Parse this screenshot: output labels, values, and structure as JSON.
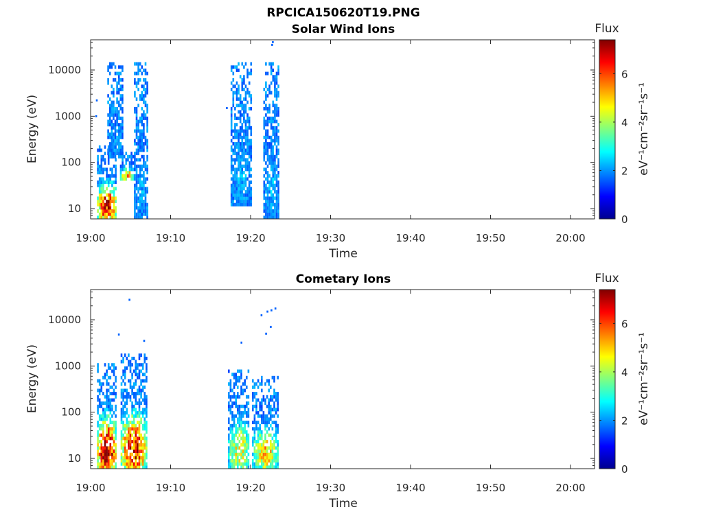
{
  "figure": {
    "title": "RPCICA150620T19.PNG"
  },
  "colorbar": {
    "title": "Flux",
    "label": "eV⁻¹cm⁻²sr⁻¹s⁻¹",
    "range": [
      0,
      7.4
    ],
    "ticks": [
      "0",
      "2",
      "4",
      "6"
    ],
    "colormap": "jet"
  },
  "chart_data": [
    {
      "type": "heatmap",
      "title": "Solar Wind Ions",
      "xlabel": "Time",
      "ylabel": "Energy (eV)",
      "x_ticks": [
        "19:00",
        "19:10",
        "19:20",
        "19:30",
        "19:40",
        "19:50",
        "20:00"
      ],
      "y_ticks": [
        "10",
        "100",
        "1000",
        "10000"
      ],
      "x_range": [
        "19:00",
        "20:03"
      ],
      "y_range": [
        6,
        45000
      ],
      "y_scale": "log",
      "color_range": [
        0,
        7.4
      ],
      "blobs": [
        {
          "t0": "19:00:48",
          "t1": "19:03:05",
          "e0": 6,
          "e1": 220,
          "peak": 6.5
        },
        {
          "t0": "19:02:05",
          "t1": "19:04:05",
          "e0": 120,
          "e1": 15000,
          "peak": 2.0
        },
        {
          "t0": "19:03:40",
          "t1": "19:05:15",
          "e0": 40,
          "e1": 160,
          "peak": 5.2
        },
        {
          "t0": "19:05:25",
          "t1": "19:07:10",
          "e0": 6,
          "e1": 14000,
          "peak": 2.1
        },
        {
          "t0": "19:17:30",
          "t1": "19:20:05",
          "e0": 12,
          "e1": 14000,
          "peak": 2.2
        },
        {
          "t0": "19:21:35",
          "t1": "19:23:25",
          "e0": 6,
          "e1": 14000,
          "peak": 2.3
        }
      ],
      "outliers": [
        {
          "t": "19:00:45",
          "e": 2200
        },
        {
          "t": "19:00:40",
          "e": 1000
        },
        {
          "t": "19:22:40",
          "e": 35000
        },
        {
          "t": "19:22:45",
          "e": 40000
        },
        {
          "t": "19:17:00",
          "e": 1500
        }
      ]
    },
    {
      "type": "heatmap",
      "title": "Cometary Ions",
      "xlabel": "Time",
      "ylabel": "Energy (eV)",
      "x_ticks": [
        "19:00",
        "19:10",
        "19:20",
        "19:30",
        "19:40",
        "19:50",
        "20:00"
      ],
      "y_ticks": [
        "10",
        "100",
        "1000",
        "10000"
      ],
      "x_range": [
        "19:00",
        "20:03"
      ],
      "y_range": [
        6,
        45000
      ],
      "y_scale": "log",
      "color_range": [
        0,
        7.4
      ],
      "blobs": [
        {
          "t0": "19:00:48",
          "t1": "19:03:05",
          "e0": 6,
          "e1": 1100,
          "peak": 7.2
        },
        {
          "t0": "19:03:45",
          "t1": "19:06:55",
          "e0": 6,
          "e1": 1800,
          "peak": 6.4
        },
        {
          "t0": "19:17:10",
          "t1": "19:19:50",
          "e0": 6,
          "e1": 900,
          "peak": 4.6
        },
        {
          "t0": "19:20:10",
          "t1": "19:23:25",
          "e0": 6,
          "e1": 600,
          "peak": 4.8
        }
      ],
      "outliers": [
        {
          "t": "19:04:50",
          "e": 27000
        },
        {
          "t": "19:03:30",
          "e": 4800
        },
        {
          "t": "19:06:40",
          "e": 3500
        },
        {
          "t": "19:18:50",
          "e": 3200
        },
        {
          "t": "19:21:20",
          "e": 12500
        },
        {
          "t": "19:22:05",
          "e": 15000
        },
        {
          "t": "19:22:35",
          "e": 16000
        },
        {
          "t": "19:23:05",
          "e": 17500
        },
        {
          "t": "19:22:30",
          "e": 7000
        },
        {
          "t": "19:21:55",
          "e": 5000
        }
      ]
    }
  ]
}
